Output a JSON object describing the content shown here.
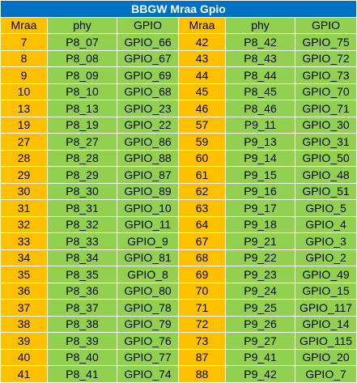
{
  "title": "BBGW Mraa Gpio",
  "headers": {
    "left": {
      "mraa": "Mraa",
      "phy": "phy",
      "gpio": "GPIO"
    },
    "right": {
      "mraa": "Mraa",
      "phy": "phy",
      "gpio": "GPIO"
    }
  },
  "colors": {
    "title_bg": "#0070c0",
    "mraa_bg": "#ffc000",
    "phy_gpio_bg": "#92d050"
  },
  "rows": [
    {
      "left": {
        "mraa": "7",
        "phy": "P8_07",
        "gpio": "GPIO_66"
      },
      "right": {
        "mraa": "42",
        "phy": "P8_42",
        "gpio": "GPIO_75"
      }
    },
    {
      "left": {
        "mraa": "8",
        "phy": "P8_08",
        "gpio": "GPIO_67"
      },
      "right": {
        "mraa": "43",
        "phy": "P8_43",
        "gpio": "GPIO_72"
      }
    },
    {
      "left": {
        "mraa": "9",
        "phy": "P8_09",
        "gpio": "GPIO_69"
      },
      "right": {
        "mraa": "44",
        "phy": "P8_44",
        "gpio": "GPIO_73"
      }
    },
    {
      "left": {
        "mraa": "10",
        "phy": "P8_10",
        "gpio": "GPIO_68"
      },
      "right": {
        "mraa": "45",
        "phy": "P8_45",
        "gpio": "GPIO_70"
      }
    },
    {
      "left": {
        "mraa": "13",
        "phy": "P8_13",
        "gpio": "GPIO_23"
      },
      "right": {
        "mraa": "46",
        "phy": "P8_46",
        "gpio": "GPIO_71"
      }
    },
    {
      "left": {
        "mraa": "19",
        "phy": "P8_19",
        "gpio": "GPIO_22"
      },
      "right": {
        "mraa": "57",
        "phy": "P9_11",
        "gpio": "GPIO_30"
      }
    },
    {
      "left": {
        "mraa": "27",
        "phy": "P8_27",
        "gpio": "GPIO_86"
      },
      "right": {
        "mraa": "59",
        "phy": "P9_13",
        "gpio": "GPIO_31"
      }
    },
    {
      "left": {
        "mraa": "28",
        "phy": "P8_28",
        "gpio": "GPIO_88"
      },
      "right": {
        "mraa": "60",
        "phy": "P9_14",
        "gpio": "GPIO_50"
      }
    },
    {
      "left": {
        "mraa": "29",
        "phy": "P8_29",
        "gpio": "GPIO_87"
      },
      "right": {
        "mraa": "61",
        "phy": "P9_15",
        "gpio": "GPIO_48"
      }
    },
    {
      "left": {
        "mraa": "30",
        "phy": "P8_30",
        "gpio": "GPIO_89"
      },
      "right": {
        "mraa": "62",
        "phy": "P9_16",
        "gpio": "GPIO_51"
      }
    },
    {
      "left": {
        "mraa": "31",
        "phy": "P8_31",
        "gpio": "GPIO_10"
      },
      "right": {
        "mraa": "63",
        "phy": "P9_17",
        "gpio": "GPIO_5"
      }
    },
    {
      "left": {
        "mraa": "32",
        "phy": "P8_32",
        "gpio": "GPIO_11"
      },
      "right": {
        "mraa": "64",
        "phy": "P9_18",
        "gpio": "GPIO_4"
      }
    },
    {
      "left": {
        "mraa": "33",
        "phy": "P8_33",
        "gpio": "GPIO_9"
      },
      "right": {
        "mraa": "67",
        "phy": "P9_21",
        "gpio": "GPIO_3"
      }
    },
    {
      "left": {
        "mraa": "34",
        "phy": "P8_34",
        "gpio": "GPIO_81"
      },
      "right": {
        "mraa": "68",
        "phy": "P9_22",
        "gpio": "GPIO_2"
      }
    },
    {
      "left": {
        "mraa": "35",
        "phy": "P8_35",
        "gpio": "GPIO_8"
      },
      "right": {
        "mraa": "69",
        "phy": "P9_23",
        "gpio": "GPIO_49"
      }
    },
    {
      "left": {
        "mraa": "36",
        "phy": "P8_36",
        "gpio": "GPIO_80"
      },
      "right": {
        "mraa": "70",
        "phy": "P9_24",
        "gpio": "GPIO_15"
      }
    },
    {
      "left": {
        "mraa": "37",
        "phy": "P8_37",
        "gpio": "GPIO_78"
      },
      "right": {
        "mraa": "71",
        "phy": "P9_25",
        "gpio": "GPIO_117"
      }
    },
    {
      "left": {
        "mraa": "38",
        "phy": "P8_38",
        "gpio": "GPIO_79"
      },
      "right": {
        "mraa": "72",
        "phy": "P9_26",
        "gpio": "GPIO_14"
      }
    },
    {
      "left": {
        "mraa": "39",
        "phy": "P8_39",
        "gpio": "GPIO_76"
      },
      "right": {
        "mraa": "73",
        "phy": "P9_27",
        "gpio": "GPIO_115"
      }
    },
    {
      "left": {
        "mraa": "40",
        "phy": "P8_40",
        "gpio": "GPIO_77"
      },
      "right": {
        "mraa": "87",
        "phy": "P9_41",
        "gpio": "GPIO_20"
      }
    },
    {
      "left": {
        "mraa": "41",
        "phy": "P8_41",
        "gpio": "GPIO_74"
      },
      "right": {
        "mraa": "88",
        "phy": "P9_42",
        "gpio": "GPIO_7"
      }
    }
  ]
}
